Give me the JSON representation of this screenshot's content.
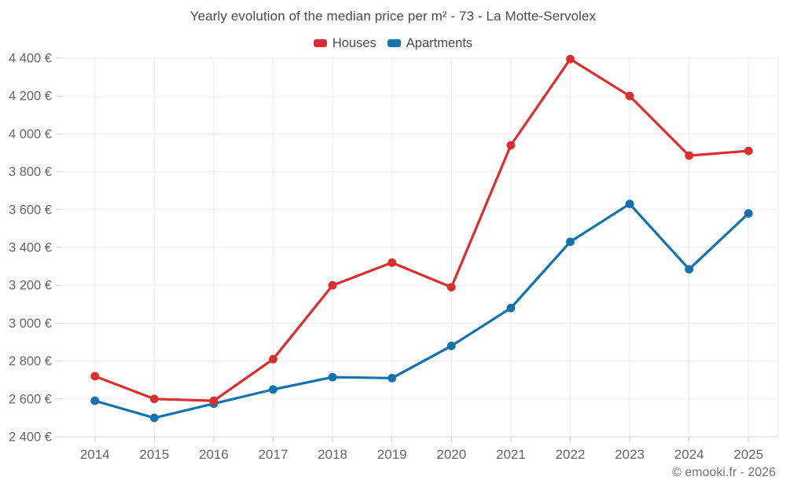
{
  "chart_data": {
    "type": "line",
    "title": "Yearly evolution of the median price per m² - 73 - La Motte-Servolex",
    "categories": [
      "2014",
      "2015",
      "2016",
      "2017",
      "2018",
      "2019",
      "2020",
      "2021",
      "2022",
      "2023",
      "2024",
      "2025"
    ],
    "series": [
      {
        "name": "Houses",
        "color": "#dc2e2e",
        "values": [
          2720,
          2600,
          2590,
          2810,
          3200,
          3320,
          3190,
          3940,
          4395,
          4200,
          3885,
          3910
        ]
      },
      {
        "name": "Apartments",
        "color": "#1272ad",
        "values": [
          2590,
          2500,
          2575,
          2650,
          2715,
          2710,
          2880,
          3080,
          3430,
          3630,
          3285,
          3580
        ]
      }
    ],
    "ylim": [
      2400,
      4400
    ],
    "ytick_step": 200,
    "ytick_labels": [
      "2 400 €",
      "2 600 €",
      "2 800 €",
      "3 000 €",
      "3 200 €",
      "3 400 €",
      "3 600 €",
      "3 800 €",
      "4 000 €",
      "4 200 €",
      "4 400 €"
    ],
    "unit": "€",
    "grid": true,
    "legend_position": "top"
  },
  "colors": {
    "grid": "#ececec",
    "axis_line": "#d6d6d6",
    "tick": "#cfcfcf",
    "axis_label": "#666666",
    "title_text": "#4a4a4a",
    "footer_text": "#757575"
  },
  "footer": {
    "credit": "© emooki.fr - 2026"
  }
}
